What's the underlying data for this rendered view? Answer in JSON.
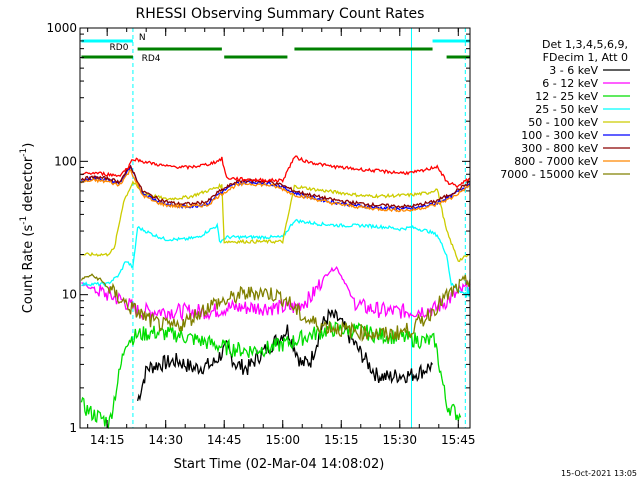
{
  "chart_data": {
    "type": "line",
    "title": "RHESSI Observing Summary Count Rates",
    "xlabel": "Start Time (02-Mar-04 14:08:02)",
    "ylabel": "Count Rate (s⁻¹ detector⁻¹)",
    "ylabel_parts": [
      "Count Rate (s",
      "-1",
      " detector",
      "-1",
      ")"
    ],
    "yscale": "log",
    "xlim": [
      14.1339,
      15.8
    ],
    "ylim": [
      1,
      1000
    ],
    "x_ticks": [
      {
        "value": 14.25,
        "label": "14:15"
      },
      {
        "value": 14.5,
        "label": "14:30"
      },
      {
        "value": 14.75,
        "label": "14:45"
      },
      {
        "value": 15.0,
        "label": "15:00"
      },
      {
        "value": 15.25,
        "label": "15:15"
      },
      {
        "value": 15.5,
        "label": "15:30"
      },
      {
        "value": 15.75,
        "label": "15:45"
      }
    ],
    "y_ticks": [
      {
        "value": 1,
        "label": "1"
      },
      {
        "value": 10,
        "label": "10"
      },
      {
        "value": 100,
        "label": "100"
      },
      {
        "value": 1000,
        "label": "1000"
      }
    ],
    "legend_header": [
      "Det 1,3,4,5,6,9,",
      "FDecim 1, Att 0"
    ],
    "legend_placement": "right",
    "series": [
      {
        "name": "3 - 6 keV",
        "color": "#000000",
        "points": [
          [
            14.38,
            1.6
          ],
          [
            14.42,
            2.8
          ],
          [
            14.47,
            3.0
          ],
          [
            14.55,
            3.2
          ],
          [
            14.62,
            2.8
          ],
          [
            14.7,
            3.0
          ],
          [
            14.76,
            4.0
          ],
          [
            14.8,
            3.0
          ],
          [
            14.85,
            2.8
          ],
          [
            14.9,
            3.5
          ],
          [
            14.97,
            4.5
          ],
          [
            15.02,
            5.5
          ],
          [
            15.08,
            3.0
          ],
          [
            15.12,
            3.2
          ],
          [
            15.17,
            6.0
          ],
          [
            15.2,
            7.0
          ],
          [
            15.24,
            6.5
          ],
          [
            15.28,
            5.0
          ],
          [
            15.34,
            3.5
          ],
          [
            15.4,
            2.5
          ],
          [
            15.45,
            2.4
          ],
          [
            15.5,
            2.5
          ],
          [
            15.55,
            2.5
          ],
          [
            15.6,
            2.7
          ],
          [
            15.64,
            3.0
          ]
        ]
      },
      {
        "name": "6 - 12 keV",
        "color": "#ff00ff",
        "points": [
          [
            14.14,
            12
          ],
          [
            14.2,
            11
          ],
          [
            14.25,
            10
          ],
          [
            14.32,
            9
          ],
          [
            14.38,
            7.5
          ],
          [
            14.5,
            7.5
          ],
          [
            14.6,
            7.5
          ],
          [
            14.7,
            7.5
          ],
          [
            14.76,
            8.0
          ],
          [
            14.85,
            8.0
          ],
          [
            14.95,
            8.0
          ],
          [
            15.05,
            8.0
          ],
          [
            15.12,
            9.5
          ],
          [
            15.17,
            13
          ],
          [
            15.2,
            15
          ],
          [
            15.23,
            16
          ],
          [
            15.27,
            12
          ],
          [
            15.3,
            9
          ],
          [
            15.35,
            8.0
          ],
          [
            15.45,
            7.5
          ],
          [
            15.55,
            7.5
          ],
          [
            15.65,
            7.8
          ],
          [
            15.72,
            9.5
          ],
          [
            15.78,
            11
          ],
          [
            15.8,
            12
          ]
        ]
      },
      {
        "name": "12 - 25 keV",
        "color": "#00dd00",
        "points": [
          [
            14.14,
            1.5
          ],
          [
            14.18,
            1.3
          ],
          [
            14.22,
            1.2
          ],
          [
            14.26,
            1.1
          ],
          [
            14.33,
            4.5
          ],
          [
            14.38,
            5.0
          ],
          [
            14.45,
            5.2
          ],
          [
            14.55,
            5.0
          ],
          [
            14.65,
            4.5
          ],
          [
            14.76,
            4.0
          ],
          [
            14.85,
            3.8
          ],
          [
            14.95,
            4.0
          ],
          [
            15.05,
            4.5
          ],
          [
            15.12,
            5.0
          ],
          [
            15.2,
            5.5
          ],
          [
            15.3,
            5.5
          ],
          [
            15.4,
            5.0
          ],
          [
            15.5,
            4.8
          ],
          [
            15.6,
            4.5
          ],
          [
            15.65,
            4.5
          ],
          [
            15.7,
            1.5
          ],
          [
            15.76,
            1.2
          ]
        ]
      },
      {
        "name": "25 - 50 keV",
        "color": "#00ffff",
        "points": [
          [
            14.14,
            12
          ],
          [
            14.2,
            12
          ],
          [
            14.25,
            12
          ],
          [
            14.3,
            14
          ],
          [
            14.33,
            18
          ],
          [
            14.36,
            16
          ],
          [
            14.38,
            32
          ],
          [
            14.45,
            28
          ],
          [
            14.5,
            26
          ],
          [
            14.58,
            26
          ],
          [
            14.64,
            27
          ],
          [
            14.68,
            30
          ],
          [
            14.72,
            33
          ],
          [
            14.73,
            25
          ],
          [
            14.76,
            27
          ],
          [
            14.85,
            27
          ],
          [
            14.95,
            27
          ],
          [
            15.0,
            27
          ],
          [
            15.05,
            36
          ],
          [
            15.15,
            34
          ],
          [
            15.25,
            33
          ],
          [
            15.35,
            33
          ],
          [
            15.45,
            32
          ],
          [
            15.5,
            31
          ],
          [
            15.55,
            32
          ],
          [
            15.62,
            30
          ],
          [
            15.66,
            28
          ],
          [
            15.7,
            20
          ],
          [
            15.72,
            12
          ],
          [
            15.78,
            10
          ],
          [
            15.8,
            11
          ]
        ]
      },
      {
        "name": "50 - 100 keV",
        "color": "#cccc00",
        "points": [
          [
            14.14,
            20
          ],
          [
            14.2,
            20
          ],
          [
            14.25,
            20
          ],
          [
            14.28,
            22
          ],
          [
            14.32,
            50
          ],
          [
            14.36,
            70
          ],
          [
            14.4,
            58
          ],
          [
            14.5,
            52
          ],
          [
            14.6,
            54
          ],
          [
            14.7,
            62
          ],
          [
            14.74,
            66
          ],
          [
            14.75,
            25
          ],
          [
            14.85,
            25
          ],
          [
            14.95,
            25
          ],
          [
            15.0,
            25
          ],
          [
            15.05,
            65
          ],
          [
            15.15,
            61
          ],
          [
            15.25,
            58
          ],
          [
            15.35,
            55
          ],
          [
            15.45,
            55
          ],
          [
            15.55,
            56
          ],
          [
            15.62,
            58
          ],
          [
            15.66,
            62
          ],
          [
            15.7,
            30
          ],
          [
            15.75,
            18
          ],
          [
            15.8,
            20
          ]
        ]
      },
      {
        "name": "100 - 300 keV",
        "color": "#0000ff",
        "points": [
          [
            14.14,
            72
          ],
          [
            14.2,
            75
          ],
          [
            14.26,
            72
          ],
          [
            14.3,
            68
          ],
          [
            14.35,
            90
          ],
          [
            14.4,
            58
          ],
          [
            14.45,
            52
          ],
          [
            14.5,
            48
          ],
          [
            14.55,
            46
          ],
          [
            14.62,
            46
          ],
          [
            14.68,
            48
          ],
          [
            14.72,
            56
          ],
          [
            14.76,
            62
          ],
          [
            14.8,
            68
          ],
          [
            14.85,
            70
          ],
          [
            14.9,
            69
          ],
          [
            14.95,
            68
          ],
          [
            15.0,
            64
          ],
          [
            15.05,
            58
          ],
          [
            15.1,
            55
          ],
          [
            15.2,
            50
          ],
          [
            15.3,
            47
          ],
          [
            15.4,
            45
          ],
          [
            15.5,
            44
          ],
          [
            15.55,
            44
          ],
          [
            15.6,
            46
          ],
          [
            15.65,
            48
          ],
          [
            15.72,
            55
          ],
          [
            15.8,
            68
          ]
        ]
      },
      {
        "name": "300 - 800 keV",
        "color": "#8b0000",
        "points": [
          [
            14.14,
            74
          ],
          [
            14.2,
            76
          ],
          [
            14.26,
            74
          ],
          [
            14.3,
            70
          ],
          [
            14.35,
            92
          ],
          [
            14.4,
            60
          ],
          [
            14.45,
            54
          ],
          [
            14.5,
            50
          ],
          [
            14.55,
            48
          ],
          [
            14.62,
            48
          ],
          [
            14.68,
            50
          ],
          [
            14.72,
            58
          ],
          [
            14.76,
            64
          ],
          [
            14.8,
            70
          ],
          [
            14.85,
            72
          ],
          [
            14.9,
            71
          ],
          [
            14.95,
            70
          ],
          [
            15.0,
            66
          ],
          [
            15.05,
            60
          ],
          [
            15.1,
            57
          ],
          [
            15.2,
            52
          ],
          [
            15.3,
            49
          ],
          [
            15.4,
            47
          ],
          [
            15.5,
            46
          ],
          [
            15.55,
            46
          ],
          [
            15.6,
            48
          ],
          [
            15.65,
            50
          ],
          [
            15.72,
            57
          ],
          [
            15.8,
            70
          ]
        ]
      },
      {
        "name": "800 - 7000 keV",
        "color": "#ff8800",
        "points": [
          [
            14.14,
            70
          ],
          [
            14.2,
            72
          ],
          [
            14.26,
            70
          ],
          [
            14.3,
            66
          ],
          [
            14.35,
            86
          ],
          [
            14.4,
            56
          ],
          [
            14.45,
            50
          ],
          [
            14.5,
            47
          ],
          [
            14.55,
            46
          ],
          [
            14.62,
            46
          ],
          [
            14.68,
            47
          ],
          [
            14.72,
            54
          ],
          [
            14.76,
            60
          ],
          [
            14.8,
            66
          ],
          [
            14.85,
            68
          ],
          [
            14.9,
            67
          ],
          [
            14.95,
            66
          ],
          [
            15.0,
            62
          ],
          [
            15.05,
            56
          ],
          [
            15.1,
            54
          ],
          [
            15.2,
            49
          ],
          [
            15.3,
            46
          ],
          [
            15.4,
            44
          ],
          [
            15.5,
            43
          ],
          [
            15.55,
            43
          ],
          [
            15.6,
            45
          ],
          [
            15.65,
            47
          ],
          [
            15.72,
            53
          ],
          [
            15.8,
            66
          ]
        ]
      },
      {
        "name": "7000 - 15000 keV",
        "color": "#808000",
        "points": [
          [
            14.14,
            13
          ],
          [
            14.18,
            14
          ],
          [
            14.22,
            13
          ],
          [
            14.26,
            11
          ],
          [
            14.3,
            9.5
          ],
          [
            14.35,
            8
          ],
          [
            14.4,
            7
          ],
          [
            14.45,
            6.2
          ],
          [
            14.5,
            5.8
          ],
          [
            14.55,
            5.8
          ],
          [
            14.6,
            6.5
          ],
          [
            14.65,
            7.5
          ],
          [
            14.7,
            8.5
          ],
          [
            14.76,
            9
          ],
          [
            14.82,
            10
          ],
          [
            14.9,
            10.5
          ],
          [
            14.97,
            10
          ],
          [
            15.02,
            9
          ],
          [
            15.06,
            7.5
          ],
          [
            15.1,
            6.5
          ],
          [
            15.15,
            6
          ],
          [
            15.25,
            5.5
          ],
          [
            15.35,
            5.2
          ],
          [
            15.45,
            5
          ],
          [
            15.55,
            5.5
          ],
          [
            15.62,
            7
          ],
          [
            15.68,
            9
          ],
          [
            15.74,
            11
          ],
          [
            15.8,
            13
          ]
        ]
      },
      {
        "name": "",
        "color": "#ff0000",
        "points": [
          [
            14.14,
            80
          ],
          [
            14.2,
            82
          ],
          [
            14.25,
            80
          ],
          [
            14.3,
            78
          ],
          [
            14.34,
            90
          ],
          [
            14.36,
            105
          ],
          [
            14.4,
            100
          ],
          [
            14.5,
            92
          ],
          [
            14.6,
            90
          ],
          [
            14.68,
            95
          ],
          [
            14.72,
            100
          ],
          [
            14.74,
            105
          ],
          [
            14.76,
            75
          ],
          [
            14.85,
            73
          ],
          [
            14.95,
            72
          ],
          [
            15.0,
            72
          ],
          [
            15.05,
            108
          ],
          [
            15.1,
            100
          ],
          [
            15.2,
            92
          ],
          [
            15.3,
            88
          ],
          [
            15.4,
            85
          ],
          [
            15.5,
            82
          ],
          [
            15.55,
            82
          ],
          [
            15.6,
            85
          ],
          [
            15.66,
            92
          ],
          [
            15.7,
            70
          ],
          [
            15.75,
            65
          ],
          [
            15.8,
            75
          ]
        ]
      }
    ],
    "top_bars": [
      {
        "label": "N",
        "color": "#00ffff",
        "segments": [
          [
            14.14,
            14.36
          ],
          [
            15.64,
            15.8
          ]
        ]
      },
      {
        "label": "RD0",
        "color": "#008000",
        "segments": [
          [
            14.38,
            14.74
          ],
          [
            15.05,
            15.64
          ]
        ]
      },
      {
        "label": "RD4",
        "color": "#008000",
        "segments": [
          [
            14.14,
            14.36
          ],
          [
            14.75,
            15.02
          ],
          [
            15.7,
            15.8
          ]
        ]
      }
    ],
    "vlines": [
      {
        "x": 14.36,
        "style": "dashed",
        "color": "#00ffff"
      },
      {
        "x": 15.55,
        "style": "solid",
        "color": "#00ffff"
      },
      {
        "x": 15.78,
        "style": "dashed",
        "color": "#00ffff"
      }
    ]
  },
  "footer_date": "15-Oct-2021 13:05"
}
